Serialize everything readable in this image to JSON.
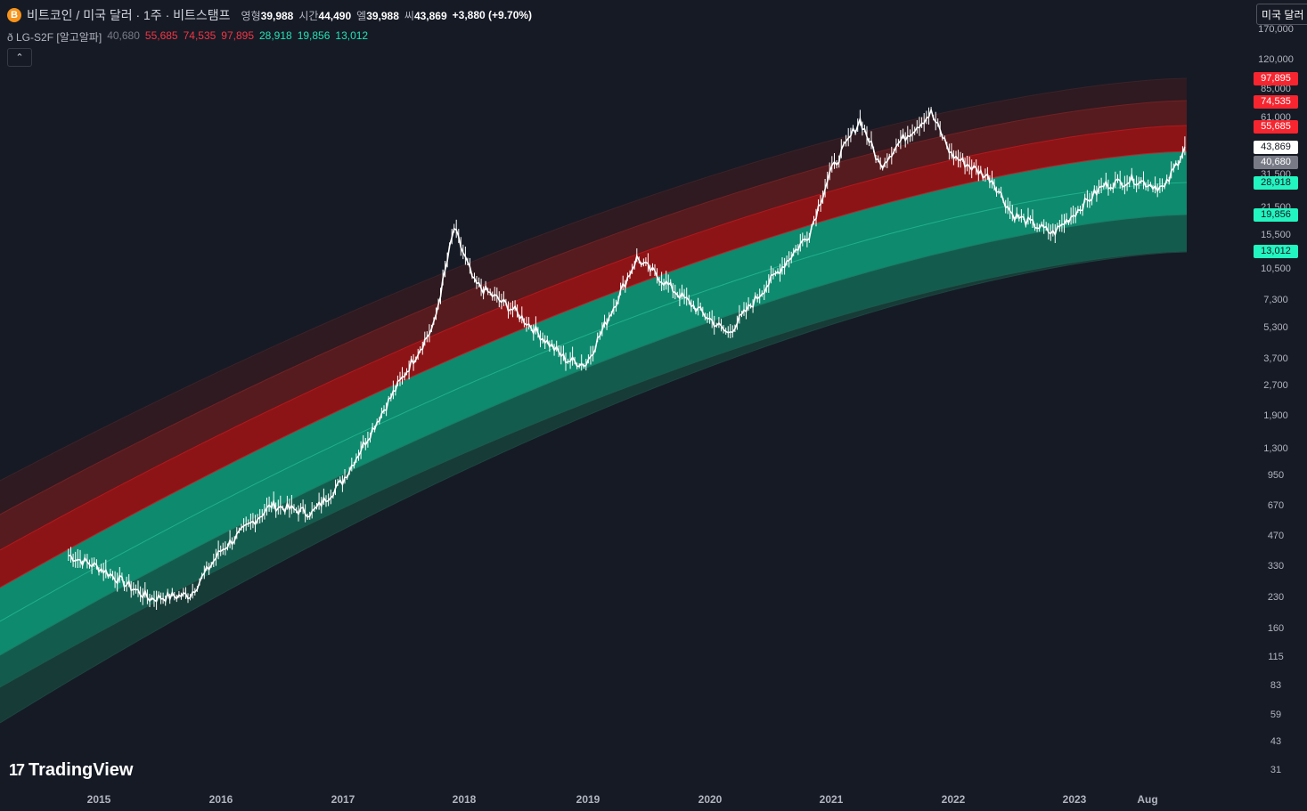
{
  "header": {
    "symbol_icon": "B",
    "title": "비트코인 / 미국 달러 · 1주 · 비트스탬프",
    "ohlc": [
      {
        "label": "영형",
        "value": "39,988"
      },
      {
        "label": "시간",
        "value": "44,490"
      },
      {
        "label": "엘",
        "value": "39,988"
      },
      {
        "label": "씨",
        "value": "43,869"
      }
    ],
    "change": "+3,880 (+9.70%)"
  },
  "indicator": {
    "name": "ð LG-S2F [알고알파]",
    "values": [
      {
        "text": "40,680",
        "tone": "gray"
      },
      {
        "text": "55,685",
        "tone": "red"
      },
      {
        "text": "74,535",
        "tone": "red"
      },
      {
        "text": "97,895",
        "tone": "red"
      },
      {
        "text": "28,918",
        "tone": "grn"
      },
      {
        "text": "19,856",
        "tone": "grn"
      },
      {
        "text": "13,012",
        "tone": "grn"
      }
    ]
  },
  "currency_button": "미국 달러",
  "collapse_icon": "chevron-up-icon",
  "y_axis": {
    "scale": "log",
    "ticks": [
      "170,000",
      "120,000",
      "85,000",
      "61,000",
      "31,500",
      "21,500",
      "15,500",
      "10,500",
      "7,300",
      "5,300",
      "3,700",
      "2,700",
      "1,900",
      "1,300",
      "950",
      "670",
      "470",
      "330",
      "230",
      "160",
      "115",
      "83",
      "59",
      "43",
      "31"
    ]
  },
  "x_axis": {
    "ticks": [
      "2015",
      "2016",
      "2017",
      "2018",
      "2019",
      "2020",
      "2021",
      "2022",
      "2023",
      "Aug"
    ]
  },
  "price_labels": [
    {
      "text": "97,895",
      "bg": "#f7252f",
      "fg": "#ffffff"
    },
    {
      "text": "74,535",
      "bg": "#f7252f",
      "fg": "#ffffff"
    },
    {
      "text": "55,685",
      "bg": "#f7252f",
      "fg": "#ffffff"
    },
    {
      "text": "43,869",
      "bg": "#ffffff",
      "fg": "#131722"
    },
    {
      "text": "40,680",
      "bg": "#787b86",
      "fg": "#ffffff"
    },
    {
      "text": "28,918",
      "bg": "#22f5c0",
      "fg": "#131722"
    },
    {
      "text": "19,856",
      "bg": "#22f5c0",
      "fg": "#131722"
    },
    {
      "text": "13,012",
      "bg": "#22f5c0",
      "fg": "#131722"
    }
  ],
  "colors": {
    "background": "#161a25",
    "band_outer_red": "#2e1a20",
    "band_mid_red": "#561b1e",
    "band_inner_red": "#8c1417",
    "band_inner_green": "#0e8a6e",
    "band_mid_green": "#135c4d",
    "band_outer_green": "#173b37",
    "candles": "#ffffff"
  },
  "chart_data": {
    "type": "line",
    "title": "",
    "scale": "log",
    "x": [
      "2014-10",
      "2015-01",
      "2015-06",
      "2015-10",
      "2016-01",
      "2016-06",
      "2016-10",
      "2017-01",
      "2017-06",
      "2017-10",
      "2017-12",
      "2018-02",
      "2018-06",
      "2018-11",
      "2019-01",
      "2019-06",
      "2019-10",
      "2020-03",
      "2020-07",
      "2020-11",
      "2021-01",
      "2021-04",
      "2021-06",
      "2021-08",
      "2021-11",
      "2022-01",
      "2022-05",
      "2022-07",
      "2022-11",
      "2023-01",
      "2023-04",
      "2023-07",
      "2023-10",
      "2023-12"
    ],
    "series": [
      {
        "name": "",
        "values": [
          380,
          330,
          230,
          240,
          400,
          680,
          620,
          900,
          2500,
          5500,
          17000,
          9000,
          6500,
          3700,
          3500,
          12000,
          8000,
          5000,
          9000,
          16000,
          32000,
          60000,
          35000,
          47000,
          65000,
          40000,
          30000,
          20000,
          16000,
          20000,
          28000,
          30000,
          27000,
          43869
        ]
      }
    ],
    "bands": [
      {
        "name": "97,895",
        "last": 97895
      },
      {
        "name": "74,535",
        "last": 74535
      },
      {
        "name": "55,685",
        "last": 55685
      },
      {
        "name": "40,680",
        "last": 40680
      },
      {
        "name": "28,918",
        "last": 28918
      },
      {
        "name": "19,856",
        "last": 19856
      },
      {
        "name": "13,012",
        "last": 13012
      }
    ],
    "grid": false
  }
}
